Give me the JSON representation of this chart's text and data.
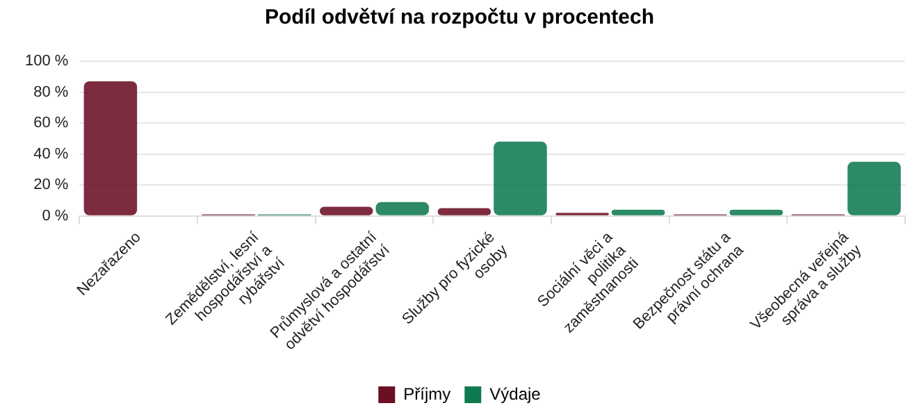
{
  "chart_data": {
    "type": "bar",
    "title": "Podíl odvětví na rozpočtu v procentech",
    "categories": [
      "Nezařazeno",
      "Zemědělství, lesní hospodářství a rybářství",
      "Průmyslová a ostatní odvětví hospodářství",
      "Služby pro fyzické osoby",
      "Sociální věci a politika zaměstnanosti",
      "Bezpečnost státu a právní ochrana",
      "Všeobecná veřejná správa a služby"
    ],
    "series": [
      {
        "name": "Příjmy",
        "color": "#6b0f24",
        "values": [
          87,
          1,
          6,
          5,
          2,
          1,
          1
        ]
      },
      {
        "name": "Výdaje",
        "color": "#0f7a50",
        "values": [
          0,
          1,
          9,
          48,
          4,
          4,
          35
        ]
      }
    ],
    "ylim": [
      0,
      100
    ],
    "yticks": [
      {
        "value": 0,
        "label": "0 %"
      },
      {
        "value": 20,
        "label": "20 %"
      },
      {
        "value": 40,
        "label": "40 %"
      },
      {
        "value": 60,
        "label": "60 %"
      },
      {
        "value": 80,
        "label": "80 %"
      },
      {
        "value": 100,
        "label": "100 %"
      }
    ],
    "grid": "y",
    "legend": "bottom"
  }
}
